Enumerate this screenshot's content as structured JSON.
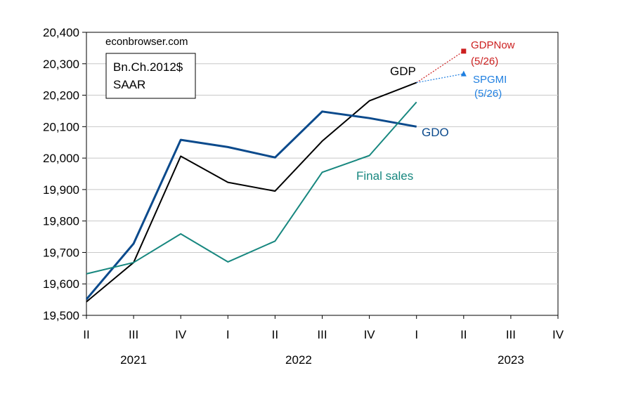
{
  "chart_data": {
    "type": "line",
    "watermark": "econbrowser.com",
    "units_box": [
      "Bn.Ch.2012$",
      "SAAR"
    ],
    "x_tick_labels": [
      "II",
      "III",
      "IV",
      "I",
      "II",
      "III",
      "IV",
      "I",
      "II",
      "III",
      "IV"
    ],
    "year_labels": [
      "2021",
      "2022",
      "2023"
    ],
    "ylim": [
      19500,
      20400
    ],
    "y_ticks": [
      19500,
      19600,
      19700,
      19800,
      19900,
      20000,
      20100,
      20200,
      20300,
      20400
    ],
    "y_tick_labels": [
      "19,500",
      "19,600",
      "19,700",
      "19,800",
      "19,900",
      "20,000",
      "20,100",
      "20,200",
      "20,300",
      "20,400"
    ],
    "grid": true,
    "series": [
      {
        "name": "GDP",
        "color": "#000000",
        "values": [
          19543,
          19668,
          20006,
          19923,
          19895,
          20054,
          20182,
          20240
        ]
      },
      {
        "name": "GDO",
        "color": "#0b4a8c",
        "values": [
          19551,
          19728,
          20058,
          20035,
          20002,
          20148,
          20127,
          20100
        ]
      },
      {
        "name": "Final sales",
        "color": "#17877f",
        "values": [
          19632,
          19668,
          19759,
          19670,
          19736,
          19955,
          20008,
          20178
        ]
      }
    ],
    "nowcasts": [
      {
        "name": "GDPNow",
        "date_label": "(5/26)",
        "color": "#cc1f1f",
        "marker": "square",
        "from_value": 20240,
        "value": 20340
      },
      {
        "name": "SPGMI",
        "date_label": "(5/26)",
        "color": "#1f7fe0",
        "marker": "triangle",
        "from_value": 20240,
        "value": 20268
      }
    ]
  }
}
